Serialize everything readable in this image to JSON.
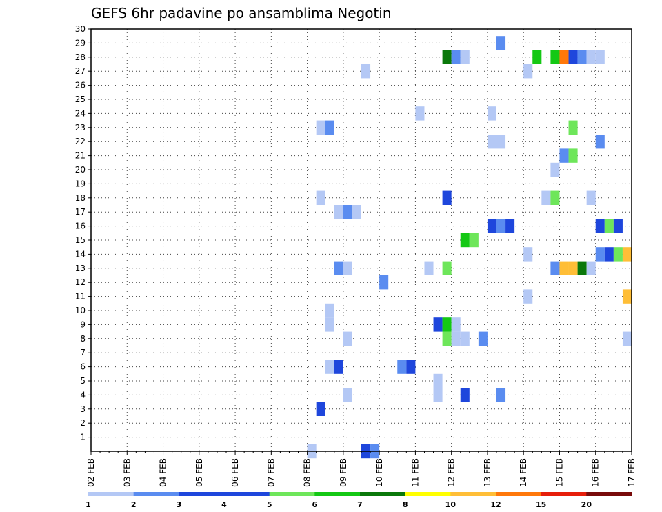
{
  "chart_data": {
    "type": "heatmap",
    "title": "GEFS 6hr padavine po ansamblima Negotin",
    "xlabel": "",
    "ylabel": "",
    "x_ticks": [
      "02 FEB",
      "03 FEB",
      "04 FEB",
      "05 FEB",
      "06 FEB",
      "07 FEB",
      "08 FEB",
      "09 FEB",
      "10 FEB",
      "11 FEB",
      "12 FEB",
      "13 FEB",
      "14 FEB",
      "15 FEB",
      "16 FEB",
      "17 FEB"
    ],
    "y_ticks": [
      "1",
      "2",
      "3",
      "4",
      "5",
      "6",
      "7",
      "8",
      "9",
      "10",
      "11",
      "12",
      "13",
      "14",
      "15",
      "16",
      "17",
      "18",
      "19",
      "20",
      "21",
      "22",
      "23",
      "24",
      "25",
      "26",
      "27",
      "28",
      "29",
      "30"
    ],
    "xlim": [
      0,
      60
    ],
    "ylim": [
      0,
      30
    ],
    "grid": true,
    "legend": {
      "placement": "bottom",
      "labels": [
        "1",
        "2",
        "3",
        "4",
        "5",
        "6",
        "7",
        "8",
        "10",
        "12",
        "15",
        "20"
      ],
      "colors": [
        "#b4c8f5",
        "#5a8cf0",
        "#1e46dc",
        "#1e46dc",
        "#6ee65a",
        "#14c814",
        "#0a780a",
        "#ffff00",
        "#ffbe37",
        "#ff780a",
        "#e61e0a",
        "#780a0a"
      ]
    },
    "cells": [
      [
        24.5,
        0,
        1
      ],
      [
        30.5,
        0,
        3
      ],
      [
        31.5,
        0,
        2
      ],
      [
        25.5,
        3,
        3
      ],
      [
        28.5,
        4,
        1
      ],
      [
        38.5,
        4,
        1
      ],
      [
        41.5,
        4,
        3
      ],
      [
        45.5,
        4,
        2
      ],
      [
        38.5,
        5,
        1
      ],
      [
        26.5,
        6,
        1
      ],
      [
        27.5,
        6,
        3
      ],
      [
        34.5,
        6,
        2
      ],
      [
        35.5,
        6,
        3
      ],
      [
        28.5,
        8,
        1
      ],
      [
        39.5,
        8,
        5
      ],
      [
        40.5,
        8,
        1
      ],
      [
        41.5,
        8,
        1
      ],
      [
        43.5,
        8,
        2
      ],
      [
        59.5,
        8,
        1
      ],
      [
        26.5,
        9,
        1
      ],
      [
        38.5,
        9,
        3
      ],
      [
        39.5,
        9,
        6
      ],
      [
        40.5,
        9,
        1
      ],
      [
        26.5,
        10,
        1
      ],
      [
        48.5,
        11,
        1
      ],
      [
        59.5,
        11,
        9
      ],
      [
        32.5,
        12,
        2
      ],
      [
        27.5,
        13,
        2
      ],
      [
        28.5,
        13,
        1
      ],
      [
        37.5,
        13,
        1
      ],
      [
        39.5,
        13,
        5
      ],
      [
        51.5,
        13,
        2
      ],
      [
        52.5,
        13,
        9
      ],
      [
        53.5,
        13,
        9
      ],
      [
        54.5,
        13,
        7
      ],
      [
        55.5,
        13,
        1
      ],
      [
        48.5,
        14,
        1
      ],
      [
        56.5,
        14,
        2
      ],
      [
        57.5,
        14,
        3
      ],
      [
        58.5,
        14,
        5
      ],
      [
        59.5,
        14,
        9
      ],
      [
        41.5,
        15,
        6
      ],
      [
        42.5,
        15,
        5
      ],
      [
        44.5,
        16,
        3
      ],
      [
        45.5,
        16,
        2
      ],
      [
        46.5,
        16,
        3
      ],
      [
        56.5,
        16,
        3
      ],
      [
        57.5,
        16,
        5
      ],
      [
        58.5,
        16,
        3
      ],
      [
        27.5,
        17,
        1
      ],
      [
        28.5,
        17,
        2
      ],
      [
        29.5,
        17,
        1
      ],
      [
        25.5,
        18,
        1
      ],
      [
        39.5,
        18,
        3
      ],
      [
        50.5,
        18,
        1
      ],
      [
        51.5,
        18,
        5
      ],
      [
        55.5,
        18,
        1
      ],
      [
        51.5,
        20,
        1
      ],
      [
        52.5,
        21,
        2
      ],
      [
        53.5,
        21,
        5
      ],
      [
        44.5,
        22,
        1
      ],
      [
        45.5,
        22,
        1
      ],
      [
        56.5,
        22,
        2
      ],
      [
        25.5,
        23,
        1
      ],
      [
        26.5,
        23,
        2
      ],
      [
        53.5,
        23,
        5
      ],
      [
        36.5,
        24,
        1
      ],
      [
        44.5,
        24,
        1
      ],
      [
        30.5,
        27,
        1
      ],
      [
        48.5,
        27,
        1
      ],
      [
        39.5,
        28,
        7
      ],
      [
        40.5,
        28,
        2
      ],
      [
        41.5,
        28,
        1
      ],
      [
        49.5,
        28,
        6
      ],
      [
        51.5,
        28,
        6
      ],
      [
        52.5,
        28,
        10
      ],
      [
        53.5,
        28,
        3
      ],
      [
        54.5,
        28,
        2
      ],
      [
        55.5,
        28,
        1
      ],
      [
        56.5,
        28,
        1
      ],
      [
        45.5,
        29,
        2
      ]
    ]
  }
}
